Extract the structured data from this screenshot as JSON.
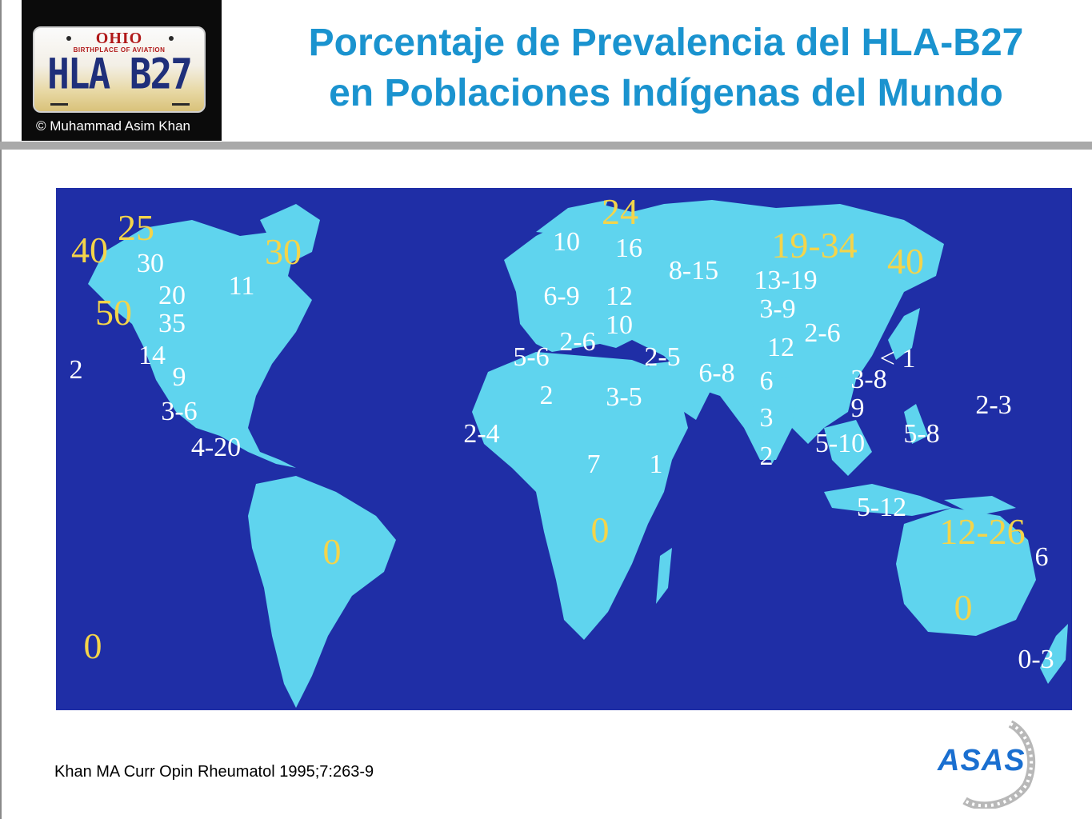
{
  "header": {
    "title_line1": "Porcentaje de Prevalencia del HLA-B27",
    "title_line2": "en Poblaciones Indígenas del Mundo"
  },
  "plate": {
    "state": "OHIO",
    "motto": "BIRTHPLACE OF AVIATION",
    "number": "HLA B27",
    "copyright": "© Muhammad Asim Khan"
  },
  "map": {
    "labels": [
      {
        "text": "40",
        "style": "gold"
      },
      {
        "text": "25",
        "style": "gold"
      },
      {
        "text": "30",
        "style": "white"
      },
      {
        "text": "50",
        "style": "gold"
      },
      {
        "text": "20",
        "style": "white"
      },
      {
        "text": "35",
        "style": "white"
      },
      {
        "text": "11",
        "style": "white"
      },
      {
        "text": "30",
        "style": "gold"
      },
      {
        "text": "2",
        "style": "white"
      },
      {
        "text": "14",
        "style": "white"
      },
      {
        "text": "9",
        "style": "white"
      },
      {
        "text": "3-6",
        "style": "white"
      },
      {
        "text": "4-20",
        "style": "white"
      },
      {
        "text": "0",
        "style": "gold"
      },
      {
        "text": "0",
        "style": "gold"
      },
      {
        "text": "24",
        "style": "gold"
      },
      {
        "text": "10",
        "style": "white"
      },
      {
        "text": "16",
        "style": "white"
      },
      {
        "text": "6-9",
        "style": "white"
      },
      {
        "text": "12",
        "style": "white"
      },
      {
        "text": "10",
        "style": "white"
      },
      {
        "text": "2-6",
        "style": "white"
      },
      {
        "text": "5-6",
        "style": "white"
      },
      {
        "text": "2",
        "style": "white"
      },
      {
        "text": "3-5",
        "style": "white"
      },
      {
        "text": "2-4",
        "style": "white"
      },
      {
        "text": "7",
        "style": "white"
      },
      {
        "text": "1",
        "style": "white"
      },
      {
        "text": "0",
        "style": "gold"
      },
      {
        "text": "8-15",
        "style": "white"
      },
      {
        "text": "2-5",
        "style": "white"
      },
      {
        "text": "6-8",
        "style": "white"
      },
      {
        "text": "19-34",
        "style": "gold"
      },
      {
        "text": "40",
        "style": "gold"
      },
      {
        "text": "13-19",
        "style": "white"
      },
      {
        "text": "3-9",
        "style": "white"
      },
      {
        "text": "2-6",
        "style": "white"
      },
      {
        "text": "12",
        "style": "white"
      },
      {
        "text": "6",
        "style": "white"
      },
      {
        "text": "3",
        "style": "white"
      },
      {
        "text": "2",
        "style": "white"
      },
      {
        "text": "< 1",
        "style": "white"
      },
      {
        "text": "3-8",
        "style": "white"
      },
      {
        "text": "9",
        "style": "white"
      },
      {
        "text": "5-10",
        "style": "white"
      },
      {
        "text": "5-8",
        "style": "white"
      },
      {
        "text": "2-3",
        "style": "white"
      },
      {
        "text": "5-12",
        "style": "white"
      },
      {
        "text": "12-26",
        "style": "gold"
      },
      {
        "text": "6",
        "style": "white"
      },
      {
        "text": "0",
        "style": "gold"
      },
      {
        "text": "0-3",
        "style": "white"
      }
    ]
  },
  "footer": {
    "citation": "Khan MA Curr Opin Rheumatol 1995;7:263-9",
    "logo_text": "ASAS"
  },
  "colors": {
    "title": "#1a93cf",
    "ocean": "#1f2ea6",
    "land": "#5fd4ee",
    "label_white": "#ffffff",
    "label_gold": "#f4d44a"
  }
}
